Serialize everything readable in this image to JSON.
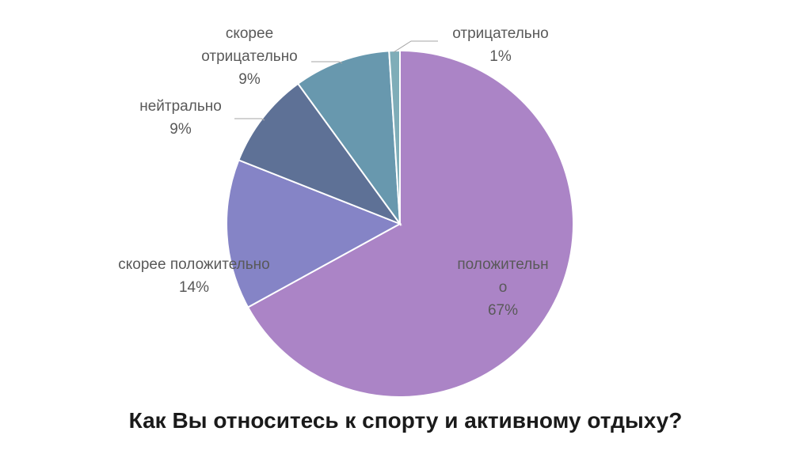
{
  "chart_data": {
    "type": "pie",
    "title": "Как Вы относитесь к спорту и активному отдыху?",
    "slices": [
      {
        "label_lines": [
          "положительн",
          "о"
        ],
        "percent_text": "67%",
        "value": 67,
        "color": "#ab84c6"
      },
      {
        "label_lines": [
          "скорее положительно"
        ],
        "percent_text": "14%",
        "value": 14,
        "color": "#8584c6"
      },
      {
        "label_lines": [
          "нейтрально"
        ],
        "percent_text": "9%",
        "value": 9,
        "color": "#5e7196"
      },
      {
        "label_lines": [
          "скорее",
          "отрицательно"
        ],
        "percent_text": "9%",
        "value": 9,
        "color": "#6898ae"
      },
      {
        "label_lines": [
          "отрицательно"
        ],
        "percent_text": "1%",
        "value": 1,
        "color": "#7fadb8"
      }
    ],
    "start_angle_deg": 0,
    "direction": "clockwise",
    "legend": "none"
  }
}
